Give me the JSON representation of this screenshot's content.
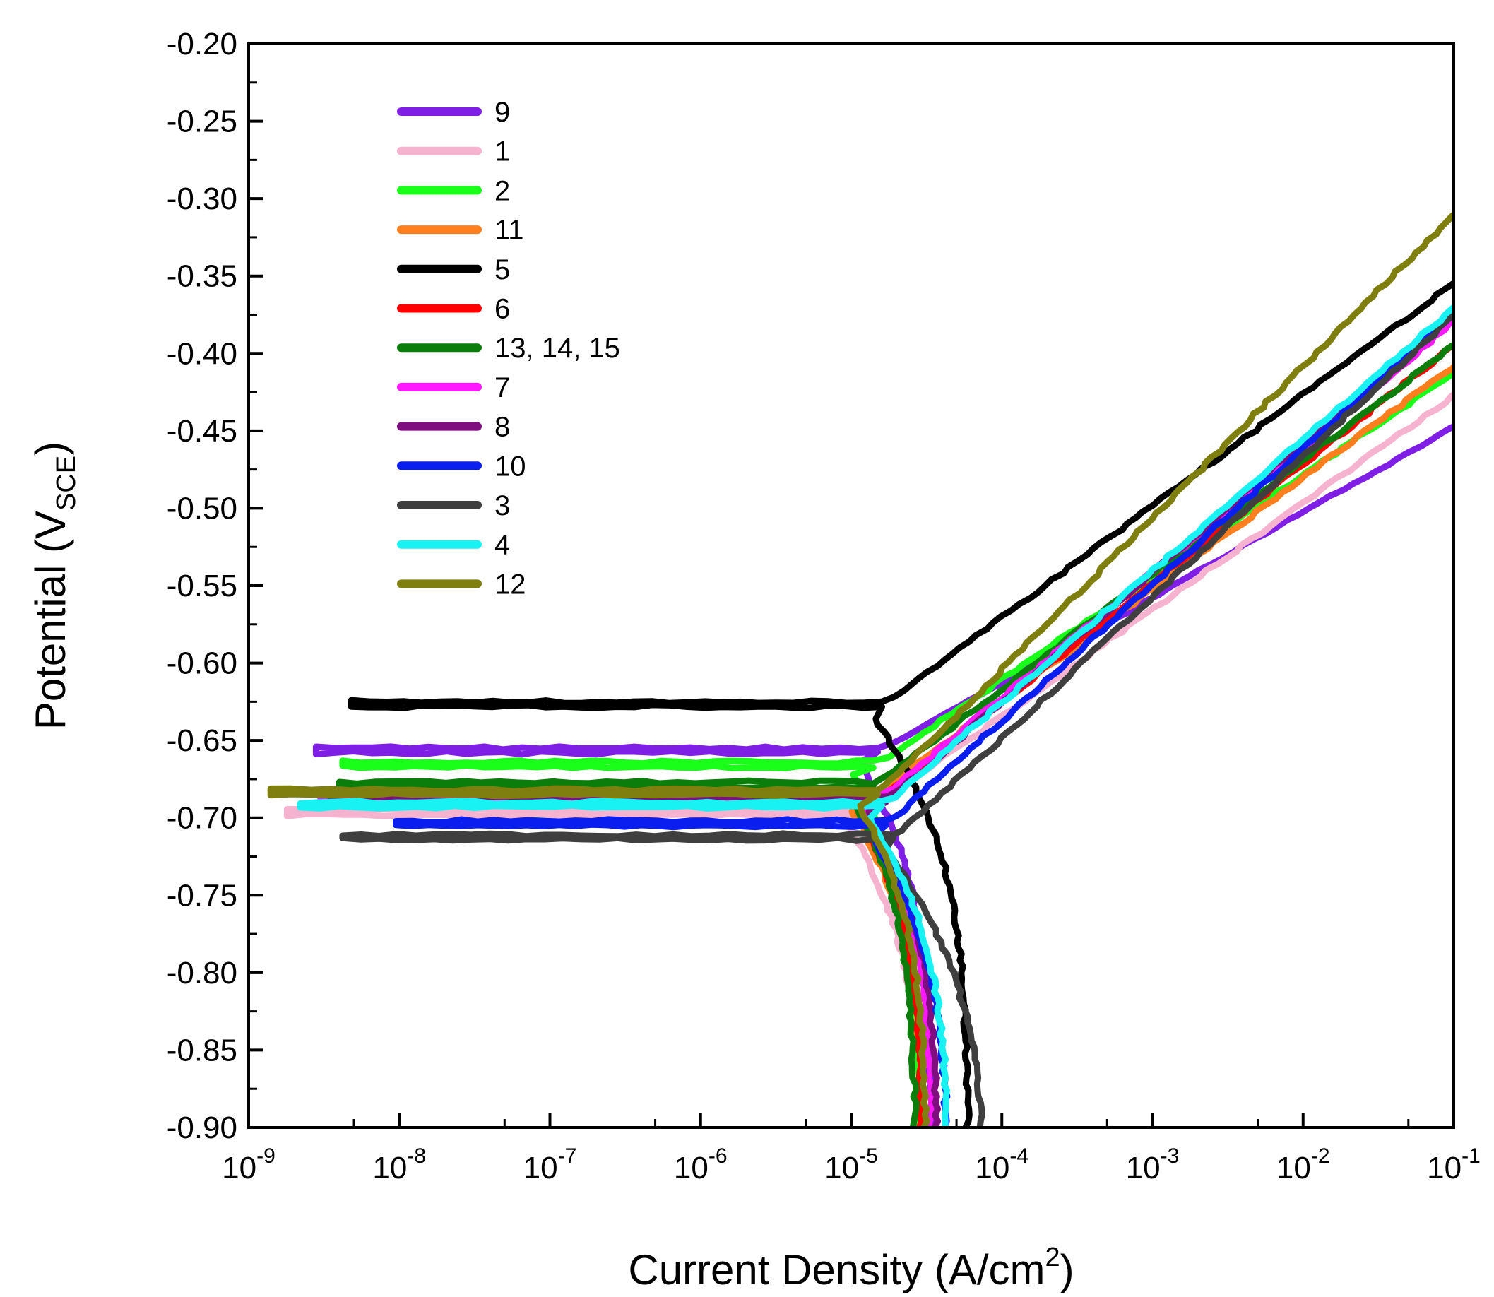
{
  "chart_data": {
    "type": "line",
    "title": "",
    "xlabel_main": "Current Density (A/cm",
    "xlabel_sup": "2",
    "xlabel_close": ")",
    "ylabel_main": "Potential (V",
    "ylabel_sub": "SCE",
    "ylabel_close": ")",
    "x_scale": "log",
    "xlim": [
      1e-09,
      0.1
    ],
    "ylim": [
      -0.9,
      -0.2
    ],
    "x_ticks": [
      {
        "base": "10",
        "exp": "-9"
      },
      {
        "base": "10",
        "exp": "-8"
      },
      {
        "base": "10",
        "exp": "-7"
      },
      {
        "base": "10",
        "exp": "-6"
      },
      {
        "base": "10",
        "exp": "-5"
      },
      {
        "base": "10",
        "exp": "-4"
      },
      {
        "base": "10",
        "exp": "-3"
      },
      {
        "base": "10",
        "exp": "-2"
      },
      {
        "base": "10",
        "exp": "-1"
      }
    ],
    "y_ticks": [
      "-0.20",
      "-0.25",
      "-0.30",
      "-0.35",
      "-0.40",
      "-0.45",
      "-0.50",
      "-0.55",
      "-0.60",
      "-0.65",
      "-0.70",
      "-0.75",
      "-0.80",
      "-0.85",
      "-0.90"
    ],
    "legend_position": "top-left",
    "series": [
      {
        "name": "9",
        "color": "#7f1fe6",
        "ecorr": -0.658,
        "icorr": 1.5e-05,
        "x_start": 2.8e-09,
        "ba": 0.055,
        "i_lim": 3.4e-05
      },
      {
        "name": "1",
        "color": "#f5b3cf",
        "ecorr": -0.698,
        "icorr": 1.2e-05,
        "x_start": 1.8e-09,
        "ba": 0.069,
        "i_lim": 3e-05
      },
      {
        "name": "2",
        "color": "#1aff1a",
        "ecorr": -0.667,
        "icorr": 1.4e-05,
        "x_start": 4.2e-09,
        "ba": 0.066,
        "i_lim": 2.9e-05
      },
      {
        "name": "11",
        "color": "#ff7f1f",
        "ecorr": -0.688,
        "icorr": 1.3e-05,
        "x_start": 5.2e-09,
        "ba": 0.072,
        "i_lim": 3.1e-05
      },
      {
        "name": "5",
        "color": "#000000",
        "ecorr": -0.628,
        "icorr": 1.6e-05,
        "x_start": 4.8e-09,
        "ba": 0.072,
        "i_lim": 6e-05
      },
      {
        "name": "6",
        "color": "#ff0000",
        "ecorr": -0.689,
        "icorr": 1.5e-05,
        "x_start": 3.3e-09,
        "ba": 0.077,
        "i_lim": 3e-05
      },
      {
        "name": "13, 14, 15",
        "color": "#0b7d0b",
        "ecorr": -0.68,
        "icorr": 1.4e-05,
        "x_start": 4e-09,
        "ba": 0.074,
        "i_lim": 2.7e-05
      },
      {
        "name": "7",
        "color": "#ff19ff",
        "ecorr": -0.687,
        "icorr": 1.6e-05,
        "x_start": 3e-09,
        "ba": 0.081,
        "i_lim": 3.5e-05
      },
      {
        "name": "8",
        "color": "#7f0f7f",
        "ecorr": -0.69,
        "icorr": 1.7e-05,
        "x_start": 3.5e-09,
        "ba": 0.084,
        "i_lim": 3.8e-05
      },
      {
        "name": "10",
        "color": "#0a1ef0",
        "ecorr": -0.705,
        "icorr": 1.7e-05,
        "x_start": 9.5e-09,
        "ba": 0.088,
        "i_lim": 4.5e-05
      },
      {
        "name": "3",
        "color": "#3f3f3f",
        "ecorr": -0.714,
        "icorr": 1.9e-05,
        "x_start": 4.2e-09,
        "ba": 0.091,
        "i_lim": 8e-05
      },
      {
        "name": "4",
        "color": "#19f2f2",
        "ecorr": -0.693,
        "icorr": 1.6e-05,
        "x_start": 2.2e-09,
        "ba": 0.085,
        "i_lim": 4.5e-05
      },
      {
        "name": "12",
        "color": "#7f7f0f",
        "ecorr": -0.685,
        "icorr": 1.5e-05,
        "x_start": 1.4e-09,
        "ba": 0.098,
        "i_lim": 3.2e-05
      }
    ]
  }
}
